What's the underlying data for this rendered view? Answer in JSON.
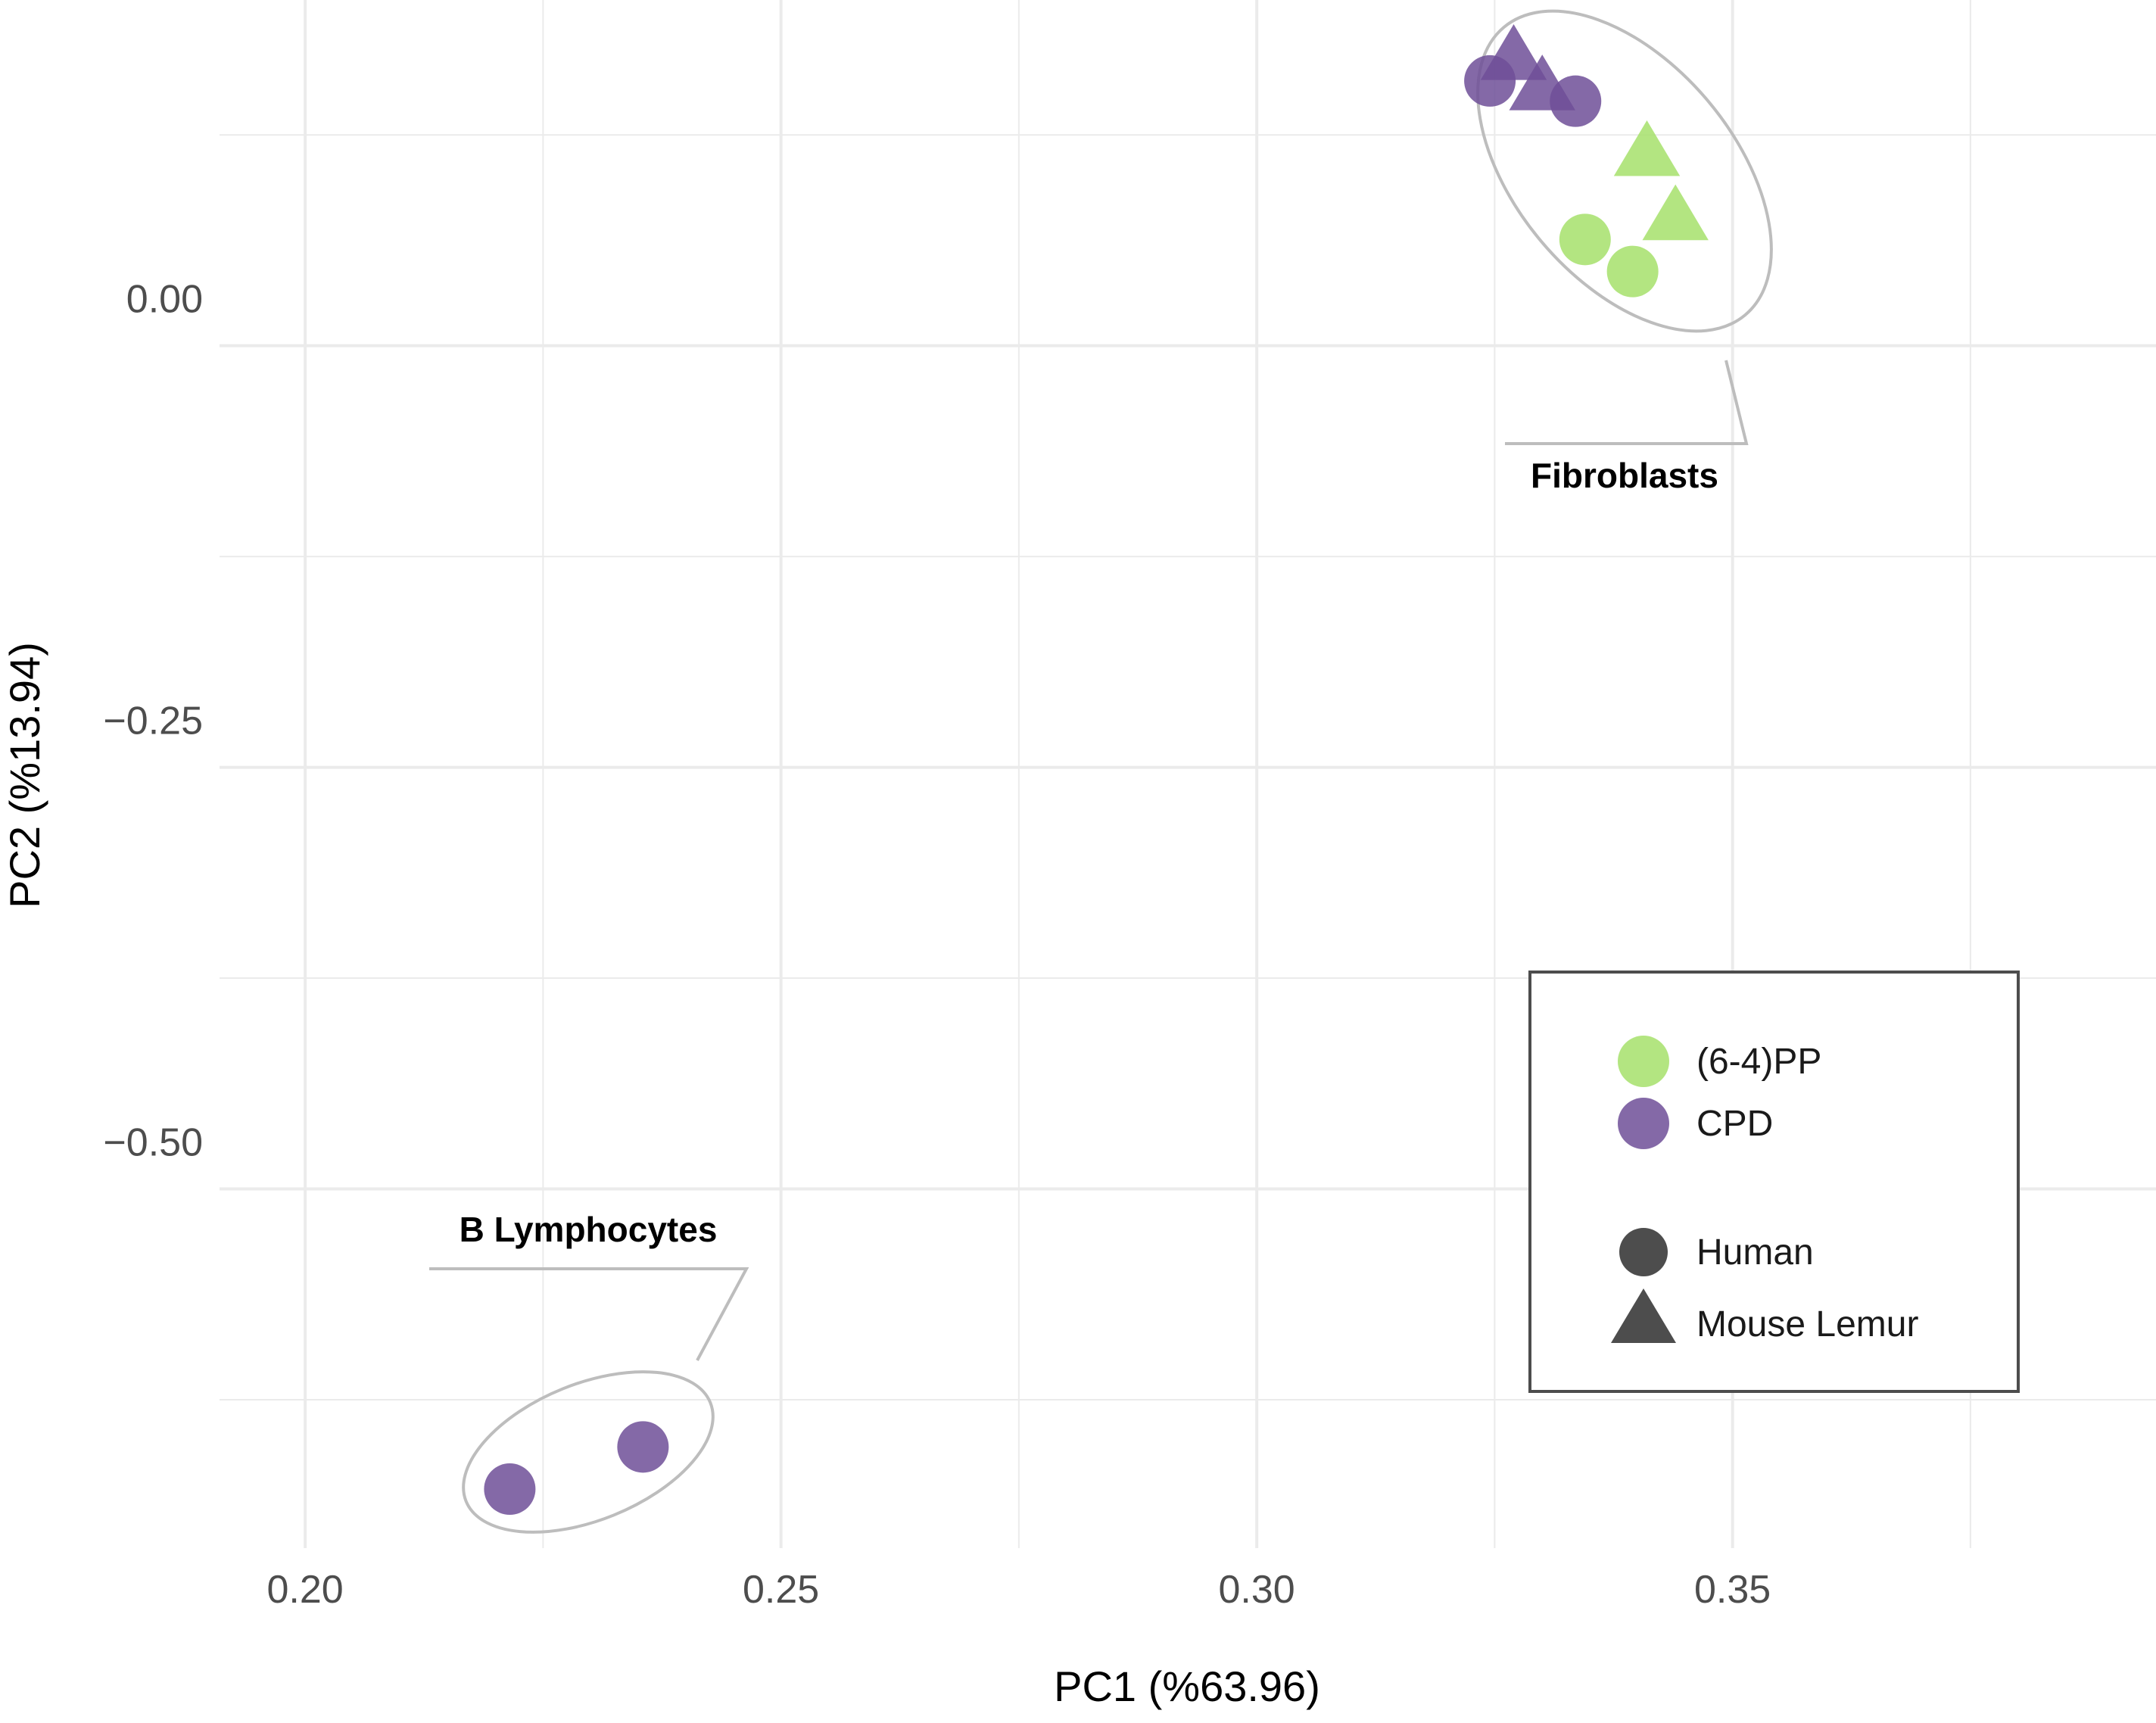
{
  "chart_data": {
    "type": "scatter",
    "xlabel": "PC1 (%63.96)",
    "ylabel": "PC2 (%13.94)",
    "xlim": [
      0.191,
      0.3945
    ],
    "ylim": [
      -0.713,
      0.205
    ],
    "x_ticks": [
      0.2,
      0.25,
      0.3,
      0.35
    ],
    "x_tick_labels": [
      "0.20",
      "0.25",
      "0.30",
      "0.35"
    ],
    "y_ticks": [
      0.0,
      -0.25,
      -0.5
    ],
    "y_tick_labels": [
      "0.00",
      "−0.25",
      "−0.50"
    ],
    "grid": true,
    "colors": {
      "(6-4)PP": "#a6e06b",
      "CPD": "#6f4f98"
    },
    "legend": {
      "placement": "bottom-right",
      "color_entries": [
        {
          "label": "(6-4)PP",
          "color": "#a6e06b"
        },
        {
          "label": "CPD",
          "color": "#6f4f98"
        }
      ],
      "shape_entries": [
        {
          "label": "Human",
          "shape": "circle"
        },
        {
          "label": "Mouse Lemur",
          "shape": "triangle"
        }
      ]
    },
    "series": [
      {
        "name": "CPD",
        "points": [
          {
            "x": 0.3245,
            "y": 0.157,
            "shape": "circle"
          },
          {
            "x": 0.3335,
            "y": 0.145,
            "shape": "circle"
          },
          {
            "x": 0.327,
            "y": 0.17,
            "shape": "triangle"
          },
          {
            "x": 0.33,
            "y": 0.152,
            "shape": "triangle"
          },
          {
            "x": 0.2215,
            "y": -0.678,
            "shape": "circle"
          },
          {
            "x": 0.2355,
            "y": -0.653,
            "shape": "circle"
          }
        ]
      },
      {
        "name": "(6-4)PP",
        "points": [
          {
            "x": 0.3345,
            "y": 0.063,
            "shape": "circle"
          },
          {
            "x": 0.3395,
            "y": 0.044,
            "shape": "circle"
          },
          {
            "x": 0.341,
            "y": 0.113,
            "shape": "triangle"
          },
          {
            "x": 0.344,
            "y": 0.075,
            "shape": "triangle"
          }
        ]
      }
    ],
    "annotations": [
      {
        "label": "Fibroblasts"
      },
      {
        "label": "B Lymphocytes"
      }
    ]
  }
}
